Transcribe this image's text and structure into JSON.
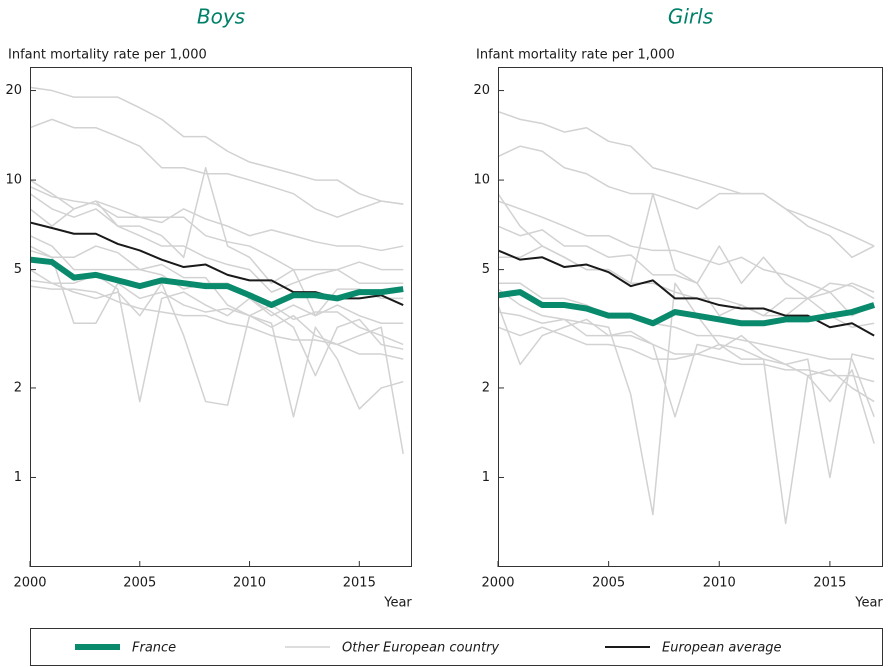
{
  "chart_data": [
    {
      "type": "line",
      "title": "Boys",
      "y_label": "Infant mortality rate per 1,000",
      "x_label": "Year",
      "yscale": "log",
      "ylim": [
        0.5,
        24
      ],
      "yticks": [
        1,
        2,
        5,
        10,
        20
      ],
      "xlim": [
        2000,
        2017.4
      ],
      "xticks": [
        2000,
        2005,
        2010,
        2015
      ],
      "x": [
        2000,
        2001,
        2002,
        2003,
        2004,
        2005,
        2006,
        2007,
        2008,
        2009,
        2010,
        2011,
        2012,
        2013,
        2014,
        2015,
        2016,
        2017
      ],
      "series": [
        {
          "name": "France",
          "color": "#0a8a6c",
          "values": [
            5.4,
            5.3,
            4.7,
            4.8,
            4.6,
            4.4,
            4.6,
            4.5,
            4.4,
            4.4,
            4.1,
            3.8,
            4.1,
            4.1,
            4.0,
            4.2,
            4.2,
            4.3
          ]
        },
        {
          "name": "Other European country",
          "color": "#d2d2d2",
          "values": [
            20.5,
            20,
            19,
            19,
            19,
            17.5,
            16,
            14,
            14,
            12.5,
            11.5,
            11,
            10.5,
            10,
            10,
            9,
            8.5,
            8.3
          ]
        },
        {
          "name": "European average",
          "color": "#1a1a1a",
          "values": [
            7.2,
            6.9,
            6.6,
            6.6,
            6.1,
            5.8,
            5.4,
            5.1,
            5.2,
            4.8,
            4.6,
            4.6,
            4.2,
            4.2,
            4.0,
            4.0,
            4.1,
            3.8
          ]
        },
        {
          "name": "Other European country",
          "color": "#d2d2d2",
          "values": [
            15,
            16,
            15,
            15,
            14,
            13,
            11,
            11,
            10.5,
            10.5,
            10,
            9.5,
            9,
            8,
            7.5,
            8,
            8.5,
            8.3
          ]
        },
        {
          "name": "Other European country",
          "color": "#d2d2d2",
          "values": [
            10,
            9,
            8,
            8.5,
            8,
            7.5,
            7.5,
            7.5,
            6.5,
            6.2,
            6,
            5.5,
            5,
            5,
            5,
            4.5,
            4.5,
            4.5
          ]
        },
        {
          "name": "Other European country",
          "color": "#d2d2d2",
          "values": [
            9,
            8,
            7.5,
            8,
            7,
            7,
            6.5,
            5.5,
            11,
            6,
            5.5,
            4.5,
            5,
            3.5,
            4.3,
            4.3,
            4,
            4
          ]
        },
        {
          "name": "Other European country",
          "color": "#d2d2d2",
          "values": [
            6.5,
            6,
            5,
            5,
            5,
            5,
            4.8,
            4.3,
            4.5,
            4.5,
            4,
            3.5,
            3.8,
            3.5,
            3.8,
            3.5,
            3.3,
            3.3
          ]
        },
        {
          "name": "Other European country",
          "color": "#d2d2d2",
          "values": [
            5,
            4.5,
            4.5,
            4.8,
            4.3,
            1.8,
            4,
            4.2,
            3.8,
            3.5,
            4,
            3.6,
            3.2,
            2.2,
            3.2,
            3.4,
            2.8,
            2.7
          ]
        },
        {
          "name": "Other European country",
          "color": "#d2d2d2",
          "values": [
            4.6,
            4.5,
            4.2,
            4,
            4.2,
            3.5,
            4.5,
            3,
            1.8,
            1.75,
            3.5,
            3.2,
            3.5,
            3,
            2.8,
            3,
            3.2,
            1.2
          ]
        },
        {
          "name": "Other European country",
          "color": "#d2d2d2",
          "values": [
            5.8,
            5.5,
            3.3,
            3.3,
            4.5,
            4,
            4.2,
            3.8,
            3.6,
            3.7,
            3.5,
            3.3,
            1.6,
            3.2,
            2.5,
            1.7,
            2,
            2.1
          ]
        },
        {
          "name": "Other European country",
          "color": "#d2d2d2",
          "values": [
            8,
            7,
            8,
            8.5,
            7,
            6.5,
            6,
            6,
            5.5,
            5.2,
            5,
            4.2,
            4.5,
            4.8,
            5,
            5.3,
            5,
            5
          ]
        },
        {
          "name": "Other European country",
          "color": "#d2d2d2",
          "values": [
            6,
            5.5,
            5.5,
            6,
            5.7,
            5,
            5.2,
            4.7,
            4.7,
            3.8,
            3.5,
            3.8,
            3.4,
            3.6,
            3.6,
            3.2,
            3,
            2.8
          ]
        },
        {
          "name": "Other European country",
          "color": "#d2d2d2",
          "values": [
            4.4,
            4.3,
            4.3,
            4.2,
            3.9,
            3.7,
            3.6,
            3.5,
            3.5,
            3.3,
            3.2,
            3,
            2.9,
            2.9,
            2.8,
            2.6,
            2.6,
            2.5
          ]
        },
        {
          "name": "Other European country",
          "color": "#d2d2d2",
          "values": [
            9.5,
            8.8,
            8.5,
            8.3,
            7.5,
            7.5,
            7.2,
            8,
            7.4,
            7,
            6.5,
            6.8,
            6.5,
            6.2,
            6,
            6,
            5.8,
            6
          ]
        }
      ]
    },
    {
      "type": "line",
      "title": "Girls",
      "y_label": "Infant mortality rate per 1,000",
      "x_label": "Year",
      "yscale": "log",
      "ylim": [
        0.5,
        24
      ],
      "yticks": [
        1,
        2,
        5,
        10,
        20
      ],
      "xlim": [
        2000,
        2017.4
      ],
      "xticks": [
        2000,
        2005,
        2010,
        2015
      ],
      "x": [
        2000,
        2001,
        2002,
        2003,
        2004,
        2005,
        2006,
        2007,
        2008,
        2009,
        2010,
        2011,
        2012,
        2013,
        2014,
        2015,
        2016,
        2017
      ],
      "series": [
        {
          "name": "France",
          "color": "#0a8a6c",
          "values": [
            4.1,
            4.2,
            3.8,
            3.8,
            3.7,
            3.5,
            3.5,
            3.3,
            3.6,
            3.5,
            3.4,
            3.3,
            3.3,
            3.4,
            3.4,
            3.5,
            3.6,
            3.8
          ]
        },
        {
          "name": "Other European country",
          "color": "#d2d2d2",
          "values": [
            17,
            16,
            15.5,
            14.5,
            15,
            13.5,
            13,
            11,
            10.5,
            10,
            9.5,
            9,
            9,
            8,
            7.5,
            7,
            6.5,
            6
          ]
        },
        {
          "name": "European average",
          "color": "#1a1a1a",
          "values": [
            5.8,
            5.4,
            5.5,
            5.1,
            5.2,
            4.9,
            4.4,
            4.6,
            4.0,
            4.0,
            3.8,
            3.7,
            3.7,
            3.5,
            3.5,
            3.2,
            3.3,
            3.0
          ]
        },
        {
          "name": "Other European country",
          "color": "#d2d2d2",
          "values": [
            12,
            13,
            12.5,
            11,
            10.5,
            9.5,
            9,
            9,
            8.5,
            8,
            9,
            9,
            9,
            8,
            7,
            6.5,
            5.5,
            6
          ]
        },
        {
          "name": "Other European country",
          "color": "#d2d2d2",
          "values": [
            9,
            7,
            6,
            5.5,
            5,
            5,
            4.5,
            9,
            5,
            4.5,
            3.5,
            3.8,
            3.5,
            3.5,
            4,
            4.2,
            3.5,
            3.8
          ]
        },
        {
          "name": "Other European country",
          "color": "#d2d2d2",
          "values": [
            4.3,
            3.8,
            3.5,
            3.4,
            3.3,
            3.2,
            1.9,
            0.75,
            4.5,
            3.5,
            2.8,
            2.7,
            2.5,
            0.7,
            2.2,
            1.8,
            2.3,
            1.3
          ]
        },
        {
          "name": "Other European country",
          "color": "#d2d2d2",
          "values": [
            3.8,
            2.4,
            3,
            3.2,
            3.4,
            3,
            3,
            2.8,
            1.6,
            2.8,
            2.7,
            3,
            2.6,
            2.4,
            2.5,
            1,
            2.6,
            2.5
          ]
        },
        {
          "name": "Other European country",
          "color": "#d2d2d2",
          "values": [
            5.5,
            5.5,
            6,
            5.5,
            5,
            5,
            4.5,
            4.5,
            4.2,
            4,
            4,
            3.8,
            3.5,
            4,
            4,
            3.5,
            3.2,
            3.3
          ]
        },
        {
          "name": "Other European country",
          "color": "#d2d2d2",
          "values": [
            7,
            6.5,
            6.8,
            6,
            6,
            5.5,
            5.6,
            4.8,
            4.8,
            4.5,
            6,
            4.5,
            5.5,
            4.5,
            4,
            4.5,
            4.4,
            4
          ]
        },
        {
          "name": "Other European country",
          "color": "#d2d2d2",
          "values": [
            3.2,
            3,
            3.2,
            3,
            2.8,
            2.8,
            2.7,
            2.5,
            2.5,
            2.6,
            2.5,
            2.4,
            2.4,
            2.3,
            2.3,
            2.2,
            2.2,
            2.1
          ]
        },
        {
          "name": "Other European country",
          "color": "#d2d2d2",
          "values": [
            4.5,
            4.5,
            4,
            4,
            3.8,
            3.5,
            3.5,
            3.3,
            3.2,
            3,
            3,
            2.9,
            2.8,
            2.7,
            2.6,
            2.5,
            2.5,
            1.6
          ]
        },
        {
          "name": "Other European country",
          "color": "#d2d2d2",
          "values": [
            8.5,
            8,
            7.5,
            7,
            6.5,
            6.5,
            6,
            5.8,
            5.8,
            5.5,
            5.2,
            5.5,
            5,
            4.8,
            4.5,
            4.2,
            4.5,
            4.2
          ]
        },
        {
          "name": "Other European country",
          "color": "#d2d2d2",
          "values": [
            3.6,
            3.5,
            3.3,
            3.4,
            3,
            3,
            3.1,
            2.8,
            2.6,
            2.6,
            2.8,
            2.5,
            2.5,
            2.4,
            2.2,
            2.3,
            2,
            1.8
          ]
        }
      ]
    }
  ]
}
